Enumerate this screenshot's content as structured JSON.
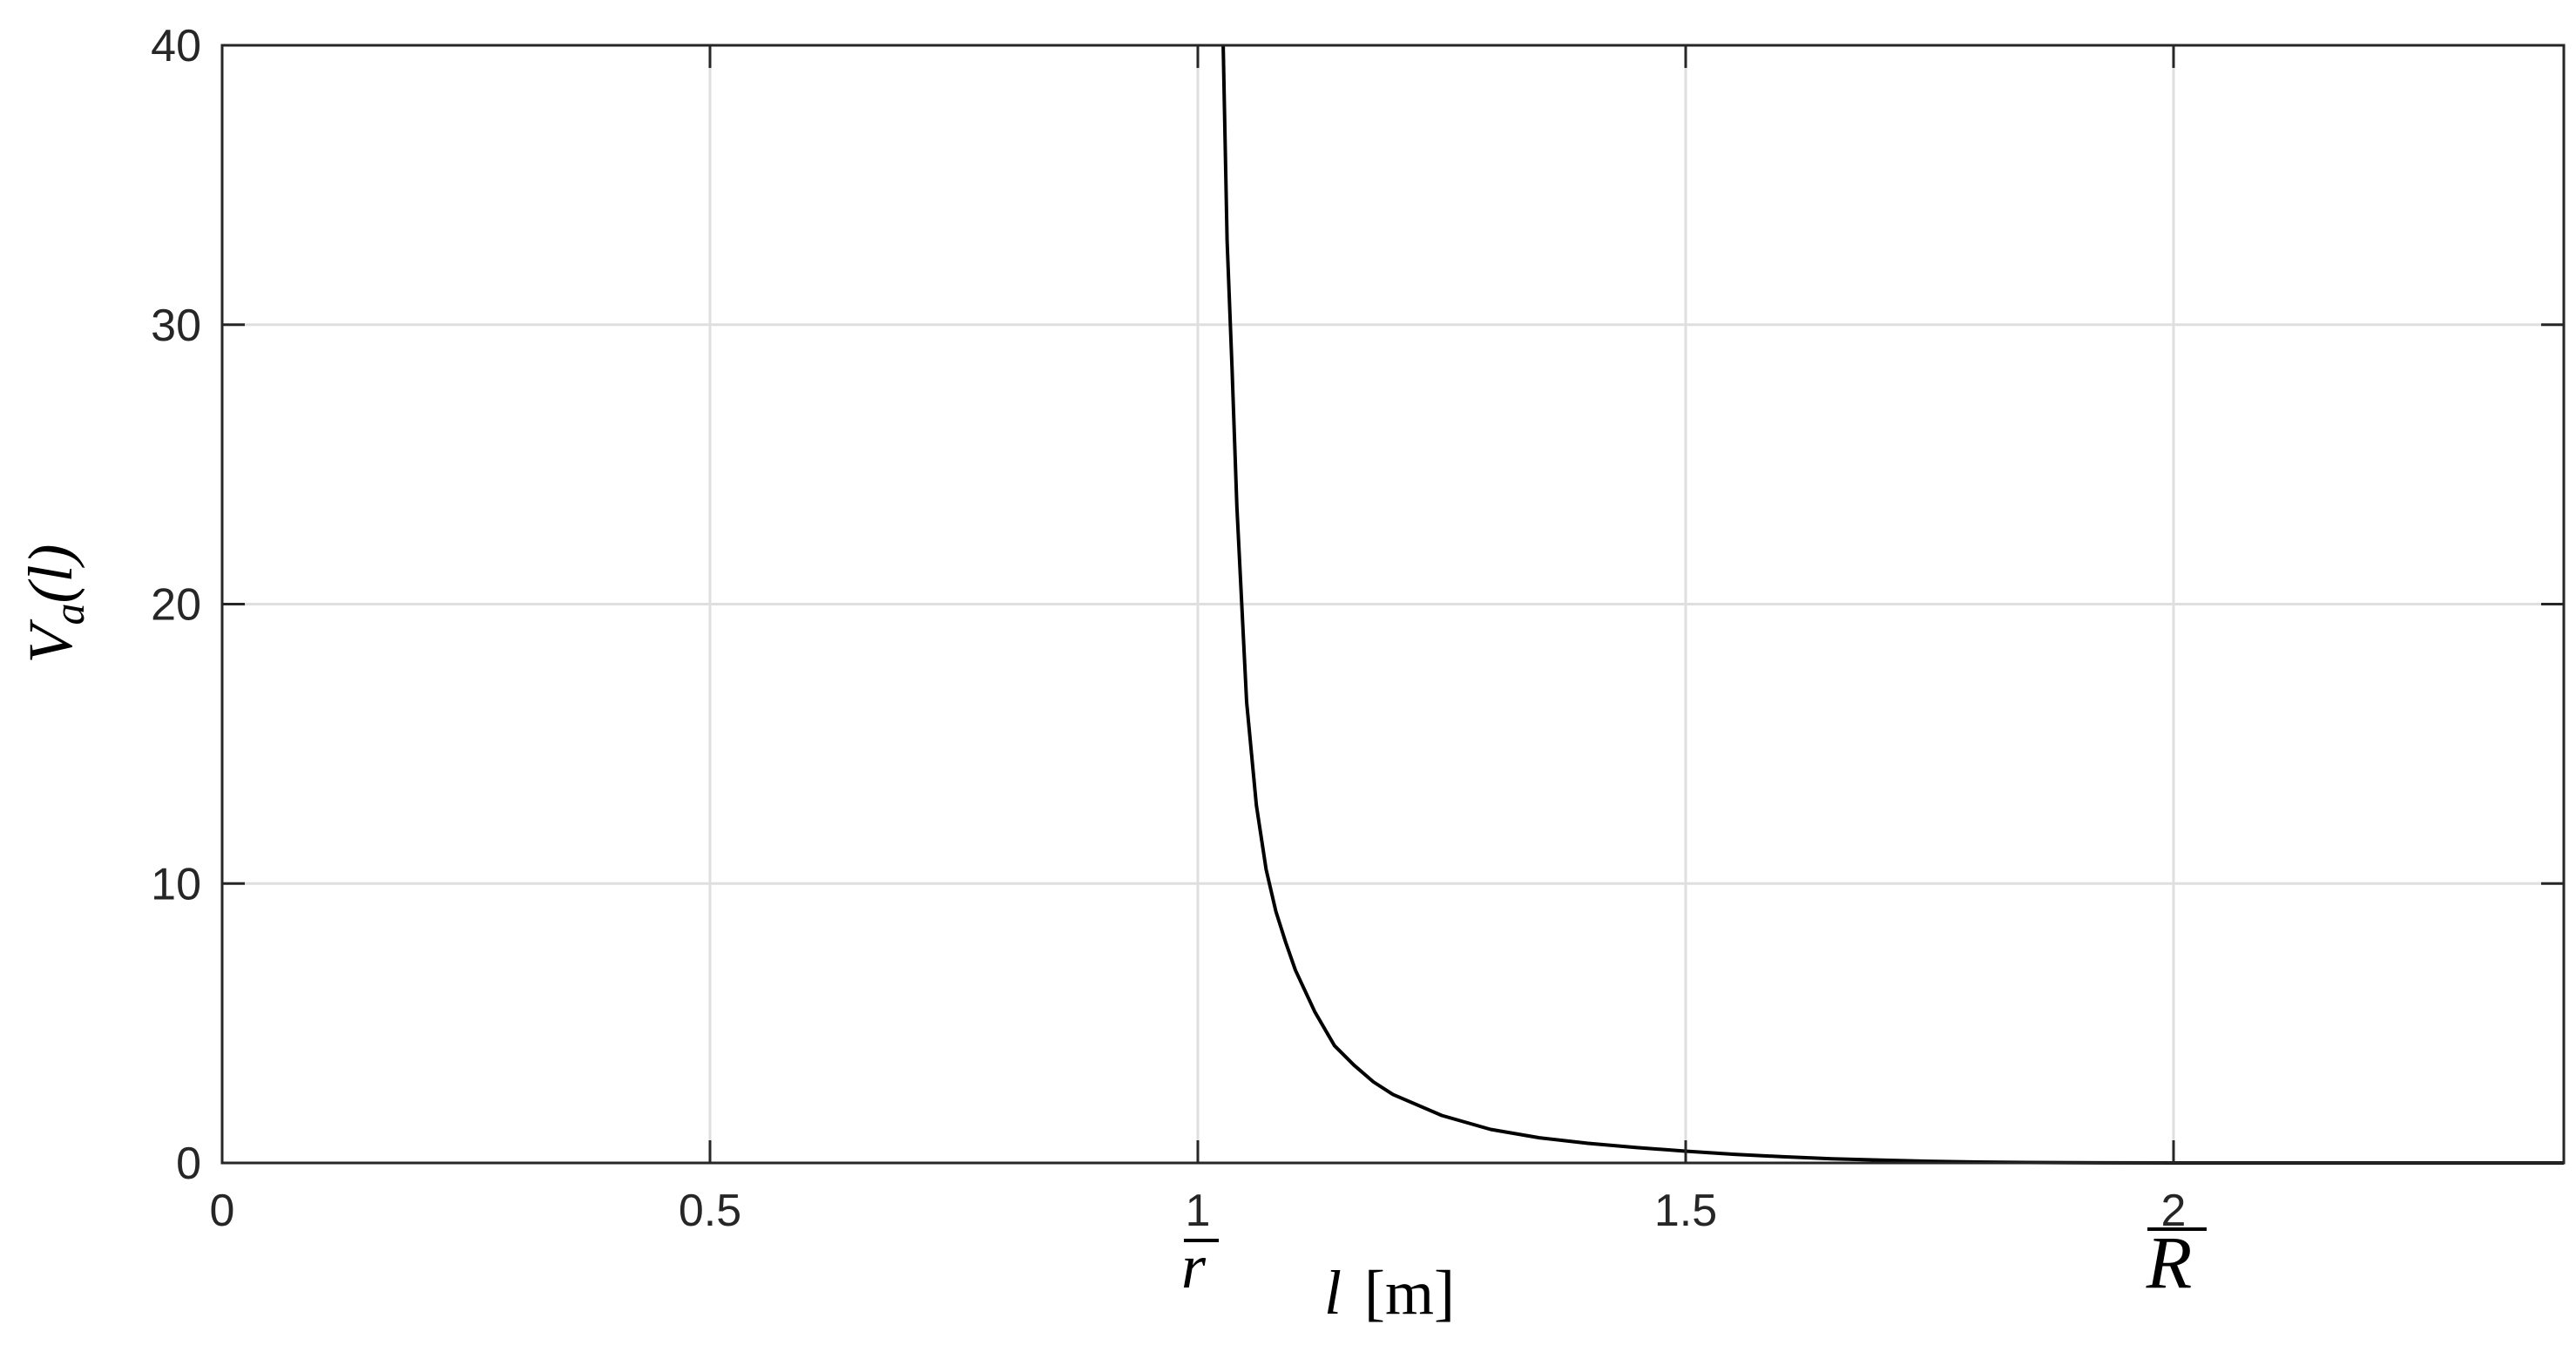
{
  "chart_data": {
    "type": "line",
    "xlabel": {
      "var": "l",
      "unit": "[m]"
    },
    "ylabel": {
      "var": "V",
      "sub": "a",
      "arg": "(l)"
    },
    "xlim": [
      0,
      2.4
    ],
    "ylim": [
      0,
      40
    ],
    "x_ticks": [
      0,
      0.5,
      1,
      1.5,
      2
    ],
    "x_tick_labels": [
      "0",
      "0.5",
      "1",
      "1.5",
      "2"
    ],
    "y_ticks": [
      0,
      10,
      20,
      30,
      40
    ],
    "y_tick_labels": [
      "0",
      "10",
      "20",
      "30",
      "40"
    ],
    "grid": true,
    "annotations": [
      {
        "text": "r",
        "accent": "bar",
        "x": 1.0
      },
      {
        "text": "R",
        "accent": "bar",
        "x": 2.0
      }
    ],
    "series": [
      {
        "color": "#000000",
        "x": [
          1.026,
          1.03,
          1.035,
          1.04,
          1.045,
          1.05,
          1.06,
          1.07,
          1.08,
          1.09,
          1.1,
          1.12,
          1.14,
          1.16,
          1.18,
          1.2,
          1.25,
          1.3,
          1.35,
          1.4,
          1.45,
          1.5,
          1.55,
          1.6,
          1.65,
          1.7,
          1.75,
          1.8,
          1.85,
          1.9,
          2.0,
          2.2,
          2.4
        ],
        "y": [
          40,
          33,
          28.5,
          23.5,
          20,
          16.5,
          12.8,
          10.5,
          9.0,
          7.9,
          6.9,
          5.4,
          4.2,
          3.5,
          2.9,
          2.45,
          1.7,
          1.2,
          0.9,
          0.7,
          0.55,
          0.42,
          0.31,
          0.22,
          0.15,
          0.1,
          0.06,
          0.03,
          0.015,
          0.005,
          0,
          0,
          0
        ]
      }
    ]
  }
}
